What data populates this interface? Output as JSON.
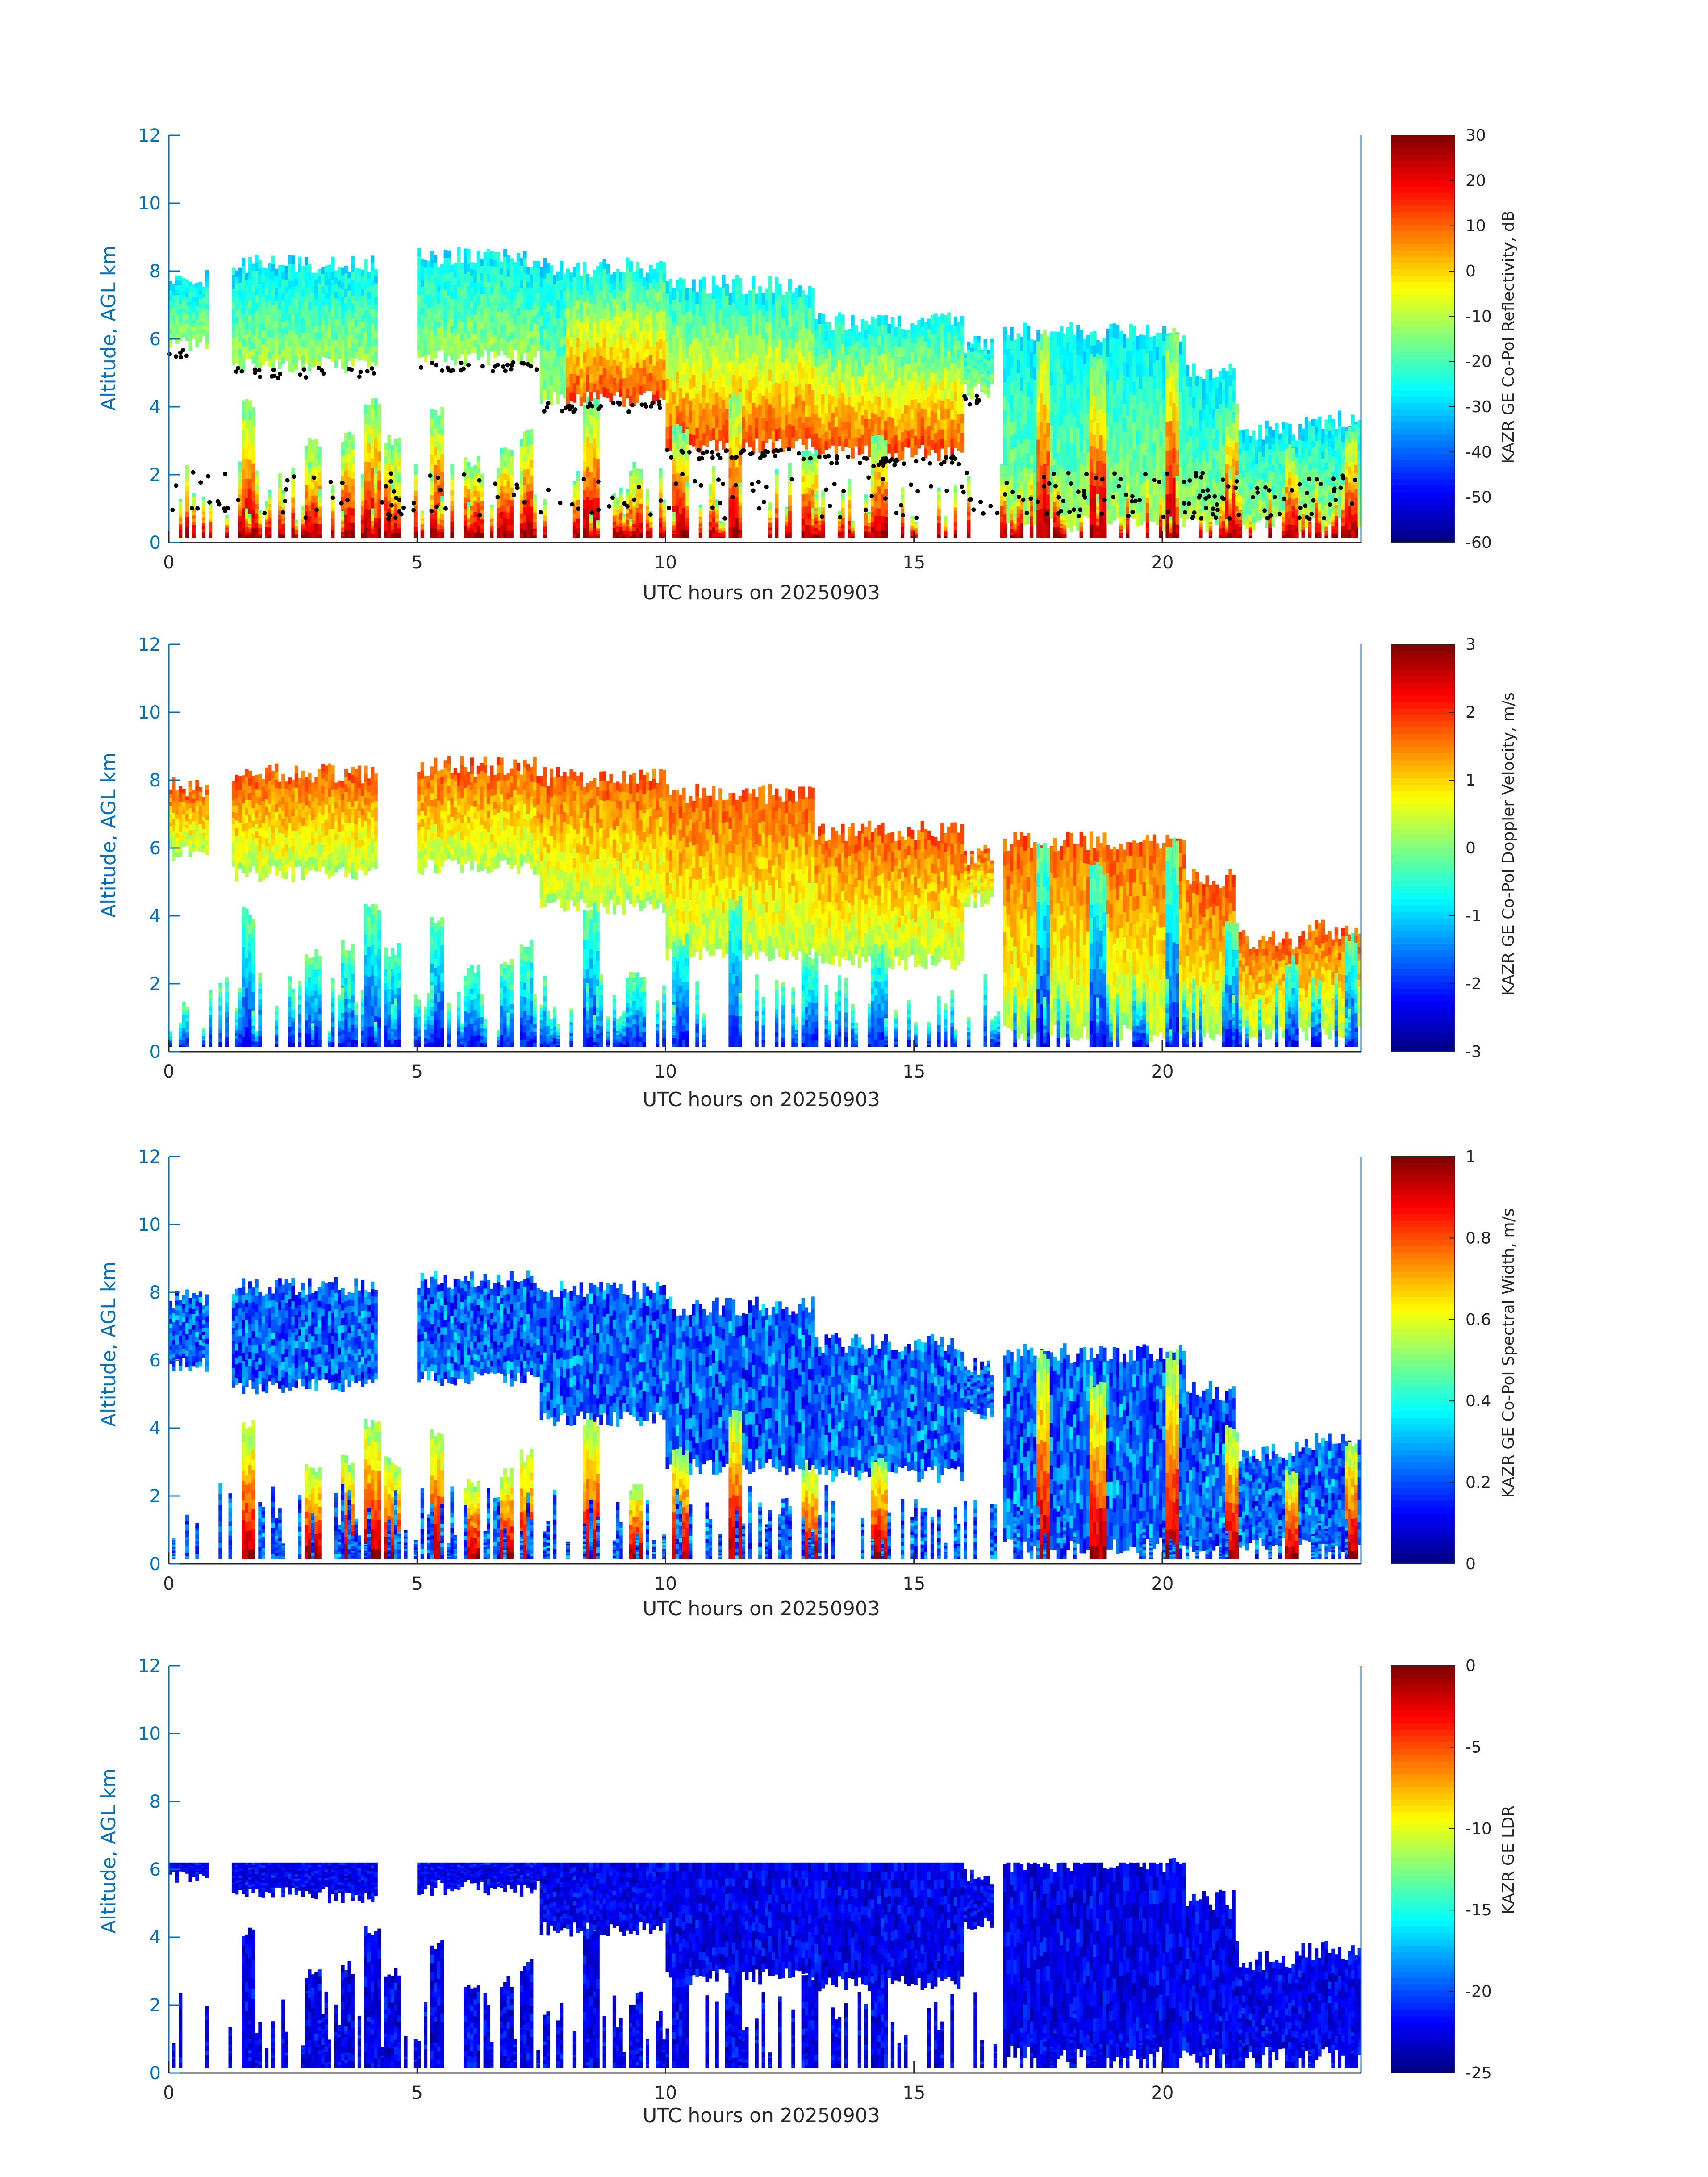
{
  "chart_data": [
    {
      "type": "heatmap",
      "kind": "reflectivity",
      "title": "",
      "xlabel": "UTC hours on 20250903",
      "ylabel": "Altitude, AGL km",
      "xlim": [
        0,
        24
      ],
      "ylim": [
        0,
        12
      ],
      "x_ticks": [
        "0",
        "5",
        "10",
        "15",
        "20"
      ],
      "y_ticks": [
        "0",
        "2",
        "4",
        "6",
        "8",
        "10",
        "12"
      ],
      "colorbar": {
        "label": "KAZR GE Co-Pol Reflectivity, dB",
        "range": [
          -60,
          30
        ],
        "ticks": [
          "-60",
          "-50",
          "-40",
          "-30",
          "-20",
          "-10",
          "0",
          "10",
          "20",
          "30"
        ],
        "colormap": "jet"
      },
      "overlay": "cloud-base points (black dots)"
    },
    {
      "type": "heatmap",
      "kind": "velocity",
      "title": "",
      "xlabel": "UTC hours on 20250903",
      "ylabel": "Altitude, AGL km",
      "xlim": [
        0,
        24
      ],
      "ylim": [
        0,
        12
      ],
      "x_ticks": [
        "0",
        "5",
        "10",
        "15",
        "20"
      ],
      "y_ticks": [
        "0",
        "2",
        "4",
        "6",
        "8",
        "10",
        "12"
      ],
      "colorbar": {
        "label": "KAZR GE Co-Pol Doppler Velocity, m/s",
        "range": [
          -3,
          3
        ],
        "ticks": [
          "-3",
          "-2",
          "-1",
          "0",
          "1",
          "2",
          "3"
        ],
        "colormap": "jet"
      }
    },
    {
      "type": "heatmap",
      "kind": "width",
      "title": "",
      "xlabel": "UTC hours on 20250903",
      "ylabel": "Altitude, AGL km",
      "xlim": [
        0,
        24
      ],
      "ylim": [
        0,
        12
      ],
      "x_ticks": [
        "0",
        "5",
        "10",
        "15",
        "20"
      ],
      "y_ticks": [
        "0",
        "2",
        "4",
        "6",
        "8",
        "10",
        "12"
      ],
      "colorbar": {
        "label": "KAZR GE Co-Pol Spectral Width, m/s",
        "range": [
          0,
          1
        ],
        "ticks": [
          "0",
          "0.2",
          "0.4",
          "0.6",
          "0.8",
          "1"
        ],
        "colormap": "jet"
      }
    },
    {
      "type": "heatmap",
      "kind": "ldr",
      "title": "",
      "xlabel": "UTC hours on 20250903",
      "ylabel": "Altitude, AGL km",
      "xlim": [
        0,
        24
      ],
      "ylim": [
        0,
        12
      ],
      "x_ticks": [
        "0",
        "5",
        "10",
        "15",
        "20"
      ],
      "y_ticks": [
        "0",
        "2",
        "4",
        "6",
        "8",
        "10",
        "12"
      ],
      "colorbar": {
        "label": "KAZR GE LDR",
        "range": [
          -25,
          0
        ],
        "ticks": [
          "-25",
          "-20",
          "-15",
          "-10",
          "-5",
          "0"
        ],
        "colormap": "jet"
      }
    }
  ],
  "cloud_layers": {
    "upper": [
      {
        "t0": 0.0,
        "t1": 0.8,
        "top": 8.1,
        "base": 5.6
      },
      {
        "t0": 1.3,
        "t1": 4.2,
        "top": 8.5,
        "base": 5.0
      },
      {
        "t0": 5.0,
        "t1": 7.5,
        "top": 8.7,
        "base": 5.2
      },
      {
        "t0": 7.5,
        "t1": 10.0,
        "top": 8.4,
        "base": 4.0
      },
      {
        "t0": 10.0,
        "t1": 13.0,
        "top": 7.9,
        "base": 2.6
      },
      {
        "t0": 13.0,
        "t1": 16.0,
        "top": 6.8,
        "base": 2.4
      },
      {
        "t0": 16.0,
        "t1": 16.6,
        "top": 6.1,
        "base": 4.2
      },
      {
        "t0": 16.8,
        "t1": 20.5,
        "top": 6.5,
        "base": 0.3
      },
      {
        "t0": 20.5,
        "t1": 21.5,
        "top": 5.4,
        "base": 0.3
      },
      {
        "t0": 21.5,
        "t1": 22.8,
        "top": 3.6,
        "base": 0.3
      },
      {
        "t0": 22.8,
        "t1": 24.0,
        "top": 3.9,
        "base": 0.3
      }
    ],
    "convective_cells": [
      {
        "t": 1.6,
        "top": 4.3
      },
      {
        "t": 2.9,
        "top": 3.1
      },
      {
        "t": 3.6,
        "top": 3.3
      },
      {
        "t": 4.1,
        "top": 4.4
      },
      {
        "t": 4.5,
        "top": 3.2
      },
      {
        "t": 5.4,
        "top": 4.0
      },
      {
        "t": 6.1,
        "top": 2.6
      },
      {
        "t": 6.8,
        "top": 2.9
      },
      {
        "t": 7.2,
        "top": 3.4
      },
      {
        "t": 8.5,
        "top": 4.4
      },
      {
        "t": 9.4,
        "top": 2.4
      },
      {
        "t": 10.3,
        "top": 3.5
      },
      {
        "t": 11.4,
        "top": 4.6
      },
      {
        "t": 12.9,
        "top": 3.0
      },
      {
        "t": 14.3,
        "top": 3.2
      },
      {
        "t": 17.6,
        "top": 6.3
      },
      {
        "t": 18.7,
        "top": 5.6
      },
      {
        "t": 20.2,
        "top": 6.4
      },
      {
        "t": 21.4,
        "top": 4.1
      },
      {
        "t": 22.6,
        "top": 2.9
      },
      {
        "t": 23.8,
        "top": 3.6
      }
    ]
  },
  "colors": {
    "axis": "#0072BD",
    "text": "#262626",
    "overlay_points": "#000000"
  }
}
